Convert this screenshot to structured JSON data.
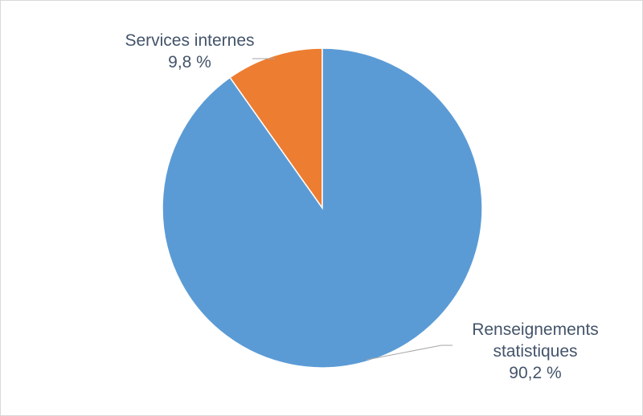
{
  "chart_data": {
    "type": "pie",
    "title": "",
    "slices": [
      {
        "name": "Services internes",
        "value": 9.8,
        "value_label": "9,8 %",
        "color": "#ed7d31"
      },
      {
        "name": "Renseignements statistiques",
        "value": 90.2,
        "value_label": "90,2 %",
        "color": "#5b9bd5"
      }
    ],
    "start_angle": "12 o'clock",
    "direction": "counter-clockwise",
    "leader_line_color": "#a6a6a6"
  },
  "labels": {
    "services_line1": "Services internes",
    "services_line2": "9,8 %",
    "renseignements_line1": "Renseignements",
    "renseignements_line2": "statistiques",
    "renseignements_line3": "90,2 %"
  }
}
